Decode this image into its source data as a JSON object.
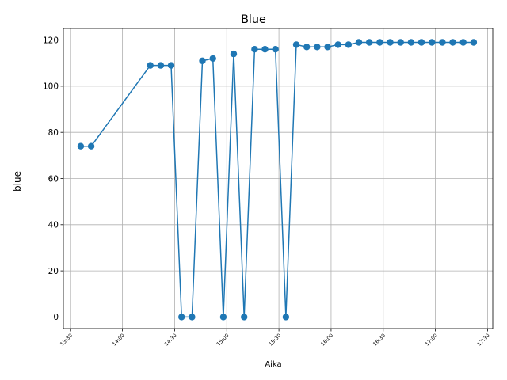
{
  "chart_data": {
    "type": "line",
    "title": "Blue",
    "xlabel": "Aika",
    "ylabel": "blue",
    "grid": true,
    "xlim": [
      "13:26",
      "17:33"
    ],
    "ylim": [
      -5,
      125
    ],
    "x_ticks": [
      "13:30",
      "14:00",
      "14:30",
      "15:00",
      "15:30",
      "16:00",
      "16:30",
      "17:00",
      "17:30"
    ],
    "y_ticks": [
      0,
      20,
      40,
      60,
      80,
      100,
      120
    ],
    "colors": {
      "line": "#1f77b4",
      "grid": "#b0b0b0"
    },
    "series": [
      {
        "marker": "circle",
        "points": [
          {
            "x": "13:36",
            "y": 74
          },
          {
            "x": "13:42",
            "y": 74
          },
          {
            "x": "14:16",
            "y": 109
          },
          {
            "x": "14:22",
            "y": 109
          },
          {
            "x": "14:28",
            "y": 109
          },
          {
            "x": "14:34",
            "y": 0
          },
          {
            "x": "14:40",
            "y": 0
          },
          {
            "x": "14:46",
            "y": 111
          },
          {
            "x": "14:52",
            "y": 112
          },
          {
            "x": "14:58",
            "y": 0
          },
          {
            "x": "15:04",
            "y": 114
          },
          {
            "x": "15:10",
            "y": 0
          },
          {
            "x": "15:16",
            "y": 116
          },
          {
            "x": "15:22",
            "y": 116
          },
          {
            "x": "15:28",
            "y": 116
          },
          {
            "x": "15:34",
            "y": 0
          },
          {
            "x": "15:40",
            "y": 118
          },
          {
            "x": "15:46",
            "y": 117
          },
          {
            "x": "15:52",
            "y": 117
          },
          {
            "x": "15:58",
            "y": 117
          },
          {
            "x": "16:04",
            "y": 118
          },
          {
            "x": "16:10",
            "y": 118
          },
          {
            "x": "16:16",
            "y": 119
          },
          {
            "x": "16:22",
            "y": 119
          },
          {
            "x": "16:28",
            "y": 119
          },
          {
            "x": "16:34",
            "y": 119
          },
          {
            "x": "16:40",
            "y": 119
          },
          {
            "x": "16:46",
            "y": 119
          },
          {
            "x": "16:52",
            "y": 119
          },
          {
            "x": "16:58",
            "y": 119
          },
          {
            "x": "17:04",
            "y": 119
          },
          {
            "x": "17:10",
            "y": 119
          },
          {
            "x": "17:16",
            "y": 119
          },
          {
            "x": "17:22",
            "y": 119
          }
        ]
      }
    ]
  }
}
